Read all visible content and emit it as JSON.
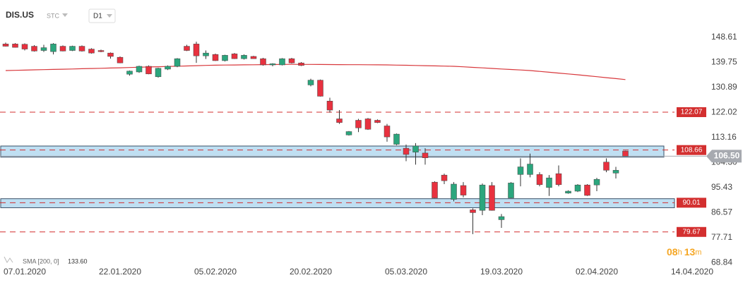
{
  "header": {
    "symbol": "DIS.US",
    "market": "STC",
    "interval": "D1"
  },
  "timer": {
    "hours": "08",
    "hours_unit": "h",
    "minutes": "13",
    "minutes_unit": "m"
  },
  "chart_data": {
    "type": "candlestick",
    "categories": [
      null,
      null,
      "07.01.2020",
      null,
      null,
      null,
      null,
      null,
      null,
      null,
      null,
      null,
      "22.01.2020",
      null,
      null,
      null,
      null,
      null,
      null,
      null,
      null,
      null,
      "05.02.2020",
      null,
      null,
      null,
      null,
      null,
      null,
      null,
      null,
      null,
      "20.02.2020",
      null,
      null,
      null,
      null,
      null,
      null,
      null,
      null,
      null,
      "05.03.2020",
      null,
      null,
      null,
      null,
      null,
      null,
      null,
      null,
      null,
      "19.03.2020",
      null,
      null,
      null,
      null,
      null,
      null,
      null,
      null,
      null,
      "02.04.2020",
      null,
      null,
      null,
      null,
      null,
      null,
      null,
      null,
      null,
      "14.04.2020"
    ],
    "open": [
      146.2,
      146.2,
      146.1,
      145.4,
      143.9,
      143.5,
      145.4,
      143.9,
      145.4,
      144.4,
      143.9,
      143.0,
      141.5,
      135.5,
      136.3,
      138.3,
      134.6,
      137.3,
      138.3,
      145.4,
      146.2,
      142.0,
      142.5,
      140.3,
      142.7,
      141.0,
      141.8,
      141.0,
      138.8,
      138.8,
      141.0,
      139.5,
      131.7,
      133.4,
      126.0,
      119.7,
      114.0,
      119.2,
      119.7,
      119.2,
      117.2,
      110.7,
      109.3,
      107.9,
      107.6,
      97.3,
      99.8,
      91.2,
      96.1,
      87.5,
      87.3,
      96.1,
      84.0,
      91.7,
      100.0,
      100.0,
      100.0,
      95.4,
      100.3,
      93.4,
      94.1,
      96.3,
      96.3,
      104.4,
      100.5,
      108.3,
      null,
      null,
      null,
      null,
      null,
      null,
      null
    ],
    "high": [
      146.7,
      146.5,
      146.4,
      145.8,
      145.9,
      146.5,
      145.7,
      145.6,
      145.7,
      144.7,
      144.2,
      143.2,
      141.8,
      136.8,
      138.5,
      138.6,
      137.8,
      138.6,
      141.2,
      145.9,
      147.0,
      143.9,
      142.8,
      142.4,
      143.0,
      142.5,
      142.0,
      141.3,
      139.4,
      141.2,
      141.3,
      139.8,
      133.9,
      133.6,
      127.2,
      122.8,
      115.4,
      119.7,
      120.0,
      119.5,
      117.9,
      114.5,
      110.6,
      111.1,
      109.3,
      97.6,
      100.3,
      97.3,
      97.3,
      88.0,
      96.8,
      97.3,
      86.0,
      97.3,
      105.7,
      107.4,
      100.8,
      99.8,
      103.2,
      94.4,
      96.6,
      96.6,
      98.8,
      105.7,
      102.7,
      108.4,
      null,
      null,
      null,
      null,
      null,
      null,
      null
    ],
    "low": [
      145.3,
      144.9,
      143.9,
      143.5,
      143.4,
      142.5,
      143.6,
      143.7,
      143.5,
      142.8,
      143.3,
      141.0,
      139.4,
      135.0,
      136.0,
      135.5,
      134.3,
      137.0,
      138.0,
      143.7,
      139.5,
      140.9,
      140.2,
      140.0,
      140.9,
      140.7,
      141.0,
      138.5,
      138.3,
      138.6,
      139.3,
      138.4,
      131.2,
      127.6,
      121.9,
      117.9,
      113.8,
      115.0,
      115.8,
      118.2,
      111.6,
      110.4,
      104.7,
      103.5,
      103.5,
      91.6,
      96.6,
      90.5,
      91.9,
      78.9,
      85.6,
      87.2,
      81.1,
      91.6,
      95.8,
      99.0,
      95.8,
      92.4,
      95.8,
      93.2,
      93.8,
      92.4,
      94.1,
      100.8,
      98.6,
      106.5,
      null,
      null,
      null,
      null,
      null,
      null,
      null
    ],
    "close": [
      145.4,
      145.0,
      144.4,
      143.7,
      144.9,
      146.2,
      143.7,
      145.4,
      143.7,
      143.0,
      143.5,
      141.8,
      139.5,
      136.6,
      138.3,
      135.6,
      137.6,
      138.3,
      141.0,
      143.9,
      142.0,
      143.0,
      140.3,
      142.2,
      141.0,
      142.2,
      141.0,
      138.8,
      139.2,
      141.0,
      139.5,
      138.6,
      133.4,
      127.7,
      122.8,
      118.4,
      115.2,
      116.5,
      116.0,
      118.4,
      113.3,
      114.3,
      107.1,
      110.1,
      105.9,
      91.7,
      97.8,
      96.6,
      92.7,
      86.5,
      96.3,
      87.3,
      85.1,
      97.0,
      102.7,
      103.7,
      96.4,
      98.8,
      96.4,
      94.1,
      96.3,
      92.6,
      98.3,
      101.5,
      101.5,
      106.5,
      null,
      null,
      null,
      null,
      null,
      null,
      null
    ],
    "up_color": "#2ba67d",
    "down_color": "#e8313f",
    "ylim": [
      66.88,
      153.03
    ],
    "yticks": [
      148.61,
      139.75,
      130.89,
      122.02,
      113.16,
      {
        "value": 104.3,
        "label": "104.30"
      },
      95.43,
      86.57,
      77.71,
      68.84
    ],
    "sma": {
      "name": "SMA [200, 0]",
      "legend_value": "133.60",
      "color": "#d8383c",
      "values": [
        136.8,
        136.88,
        136.96,
        137.04,
        137.12,
        137.2,
        137.28,
        137.36,
        137.44,
        137.52,
        137.6,
        137.69,
        137.78,
        137.88,
        137.97,
        138.06,
        138.15,
        138.24,
        138.33,
        138.42,
        138.52,
        138.61,
        138.7,
        138.74,
        138.78,
        138.81,
        138.85,
        138.89,
        138.93,
        138.96,
        139.0,
        138.98,
        138.96,
        138.94,
        138.92,
        138.9,
        138.88,
        138.86,
        138.84,
        138.82,
        138.8,
        138.73,
        138.66,
        138.59,
        138.51,
        138.44,
        138.37,
        138.3,
        138.11,
        137.93,
        137.74,
        137.55,
        137.36,
        137.18,
        136.99,
        136.8,
        136.5,
        136.2,
        135.9,
        135.6,
        135.3,
        134.96,
        134.62,
        134.28,
        133.94,
        133.6,
        null,
        null,
        null,
        null,
        null,
        null,
        null
      ]
    },
    "zones": [
      {
        "lower": 106.16,
        "upper": 110.08,
        "color": "#a9d4ee"
      },
      {
        "lower": 88.24,
        "upper": 91.43,
        "color": "#a9d4ee"
      }
    ],
    "levels": [
      {
        "value": 122.07,
        "color": "#d32f2f"
      },
      {
        "value": 108.66,
        "color": "#d32f2f"
      },
      {
        "value": 90.01,
        "color": "#d32f2f"
      },
      {
        "value": 79.67,
        "color": "#d32f2f"
      }
    ],
    "current_price": {
      "value": 106.5,
      "label": "106.50",
      "color": "#a7aab0"
    }
  }
}
